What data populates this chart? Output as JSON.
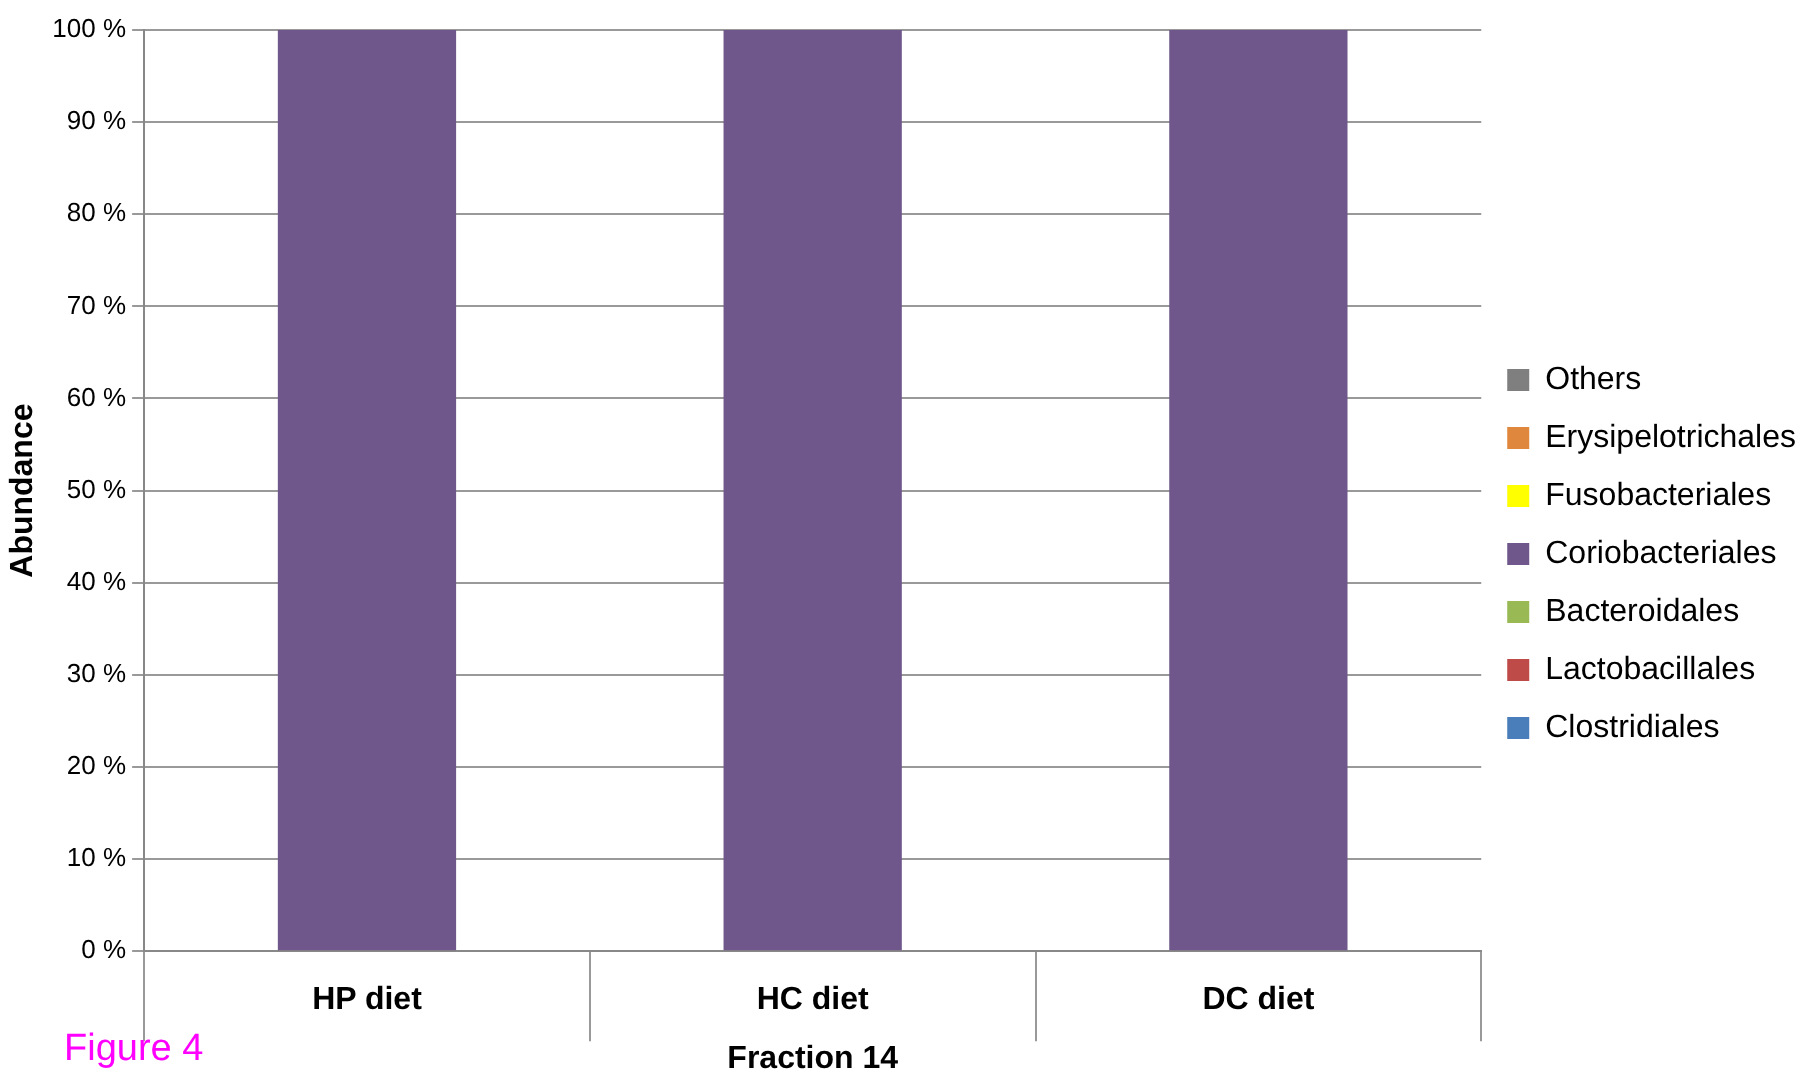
{
  "chart_data": {
    "type": "bar",
    "stacked": true,
    "xlabel": "Fraction 14",
    "ylabel": "Abundance",
    "categories": [
      "HP diet",
      "HC diet",
      "DC diet"
    ],
    "series": [
      {
        "name": "Clostridiales",
        "color": "#4a7ebb",
        "values": [
          0,
          0,
          0
        ]
      },
      {
        "name": "Lactobacillales",
        "color": "#be4b48",
        "values": [
          0,
          0,
          0
        ]
      },
      {
        "name": "Bacteroidales",
        "color": "#98b954",
        "values": [
          0,
          0,
          0
        ]
      },
      {
        "name": "Coriobacteriales",
        "color": "#6f578b",
        "values": [
          100,
          100,
          100
        ]
      },
      {
        "name": "Fusobacteriales",
        "color": "#ffff00",
        "values": [
          0,
          0,
          0
        ]
      },
      {
        "name": "Erysipelotrichales",
        "color": "#e0873e",
        "values": [
          0,
          0,
          0
        ]
      },
      {
        "name": "Others",
        "color": "#7f7f7f",
        "values": [
          0,
          0,
          0
        ]
      }
    ],
    "ylim": [
      0,
      100
    ],
    "yticks": [
      {
        "value": 0,
        "label": "0 %"
      },
      {
        "value": 10,
        "label": "10 %"
      },
      {
        "value": 20,
        "label": "20 %"
      },
      {
        "value": 30,
        "label": "30 %"
      },
      {
        "value": 40,
        "label": "40 %"
      },
      {
        "value": 50,
        "label": "50 %"
      },
      {
        "value": 60,
        "label": "60 %"
      },
      {
        "value": 70,
        "label": "70 %"
      },
      {
        "value": 80,
        "label": "80 %"
      },
      {
        "value": 90,
        "label": "90 %"
      },
      {
        "value": 100,
        "label": "100 %"
      }
    ],
    "grid": "y",
    "legend": "right",
    "annotations": [
      "Figure 4"
    ]
  }
}
